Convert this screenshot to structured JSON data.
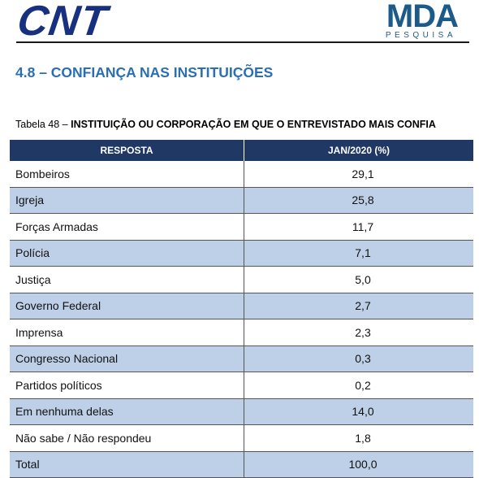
{
  "header": {
    "logo_left": "CNT",
    "logo_right": "MDA",
    "logo_right_sub": "PESQUISA"
  },
  "section_title": "4.8 – CONFIANÇA NAS INSTITUIÇÕES",
  "table_caption": {
    "prefix": "Tabela 48 –",
    "title": "INSTITUIÇÃO OU CORPORAÇÃO EM QUE O ENTREVISTADO MAIS CONFIA"
  },
  "table": {
    "headers": [
      "RESPOSTA",
      "JAN/2020 (%)"
    ],
    "rows": [
      {
        "label": "Bombeiros",
        "value": "29,1"
      },
      {
        "label": "Igreja",
        "value": "25,8"
      },
      {
        "label": "Forças Armadas",
        "value": "11,7"
      },
      {
        "label": "Polícia",
        "value": "7,1"
      },
      {
        "label": "Justiça",
        "value": "5,0"
      },
      {
        "label": "Governo Federal",
        "value": "2,7"
      },
      {
        "label": "Imprensa",
        "value": "2,3"
      },
      {
        "label": "Congresso Nacional",
        "value": "0,3"
      },
      {
        "label": "Partidos políticos",
        "value": "0,2"
      },
      {
        "label": "Em nenhuma delas",
        "value": "14,0"
      },
      {
        "label": "Não sabe / Não respondeu",
        "value": "1,8"
      },
      {
        "label": "Total",
        "value": "100,0"
      }
    ]
  },
  "colors": {
    "header_bg": "#1f3864",
    "alt_row_bg": "#bdd0e8",
    "title_color": "#2a6fb5",
    "logo_color": "#17307f"
  }
}
